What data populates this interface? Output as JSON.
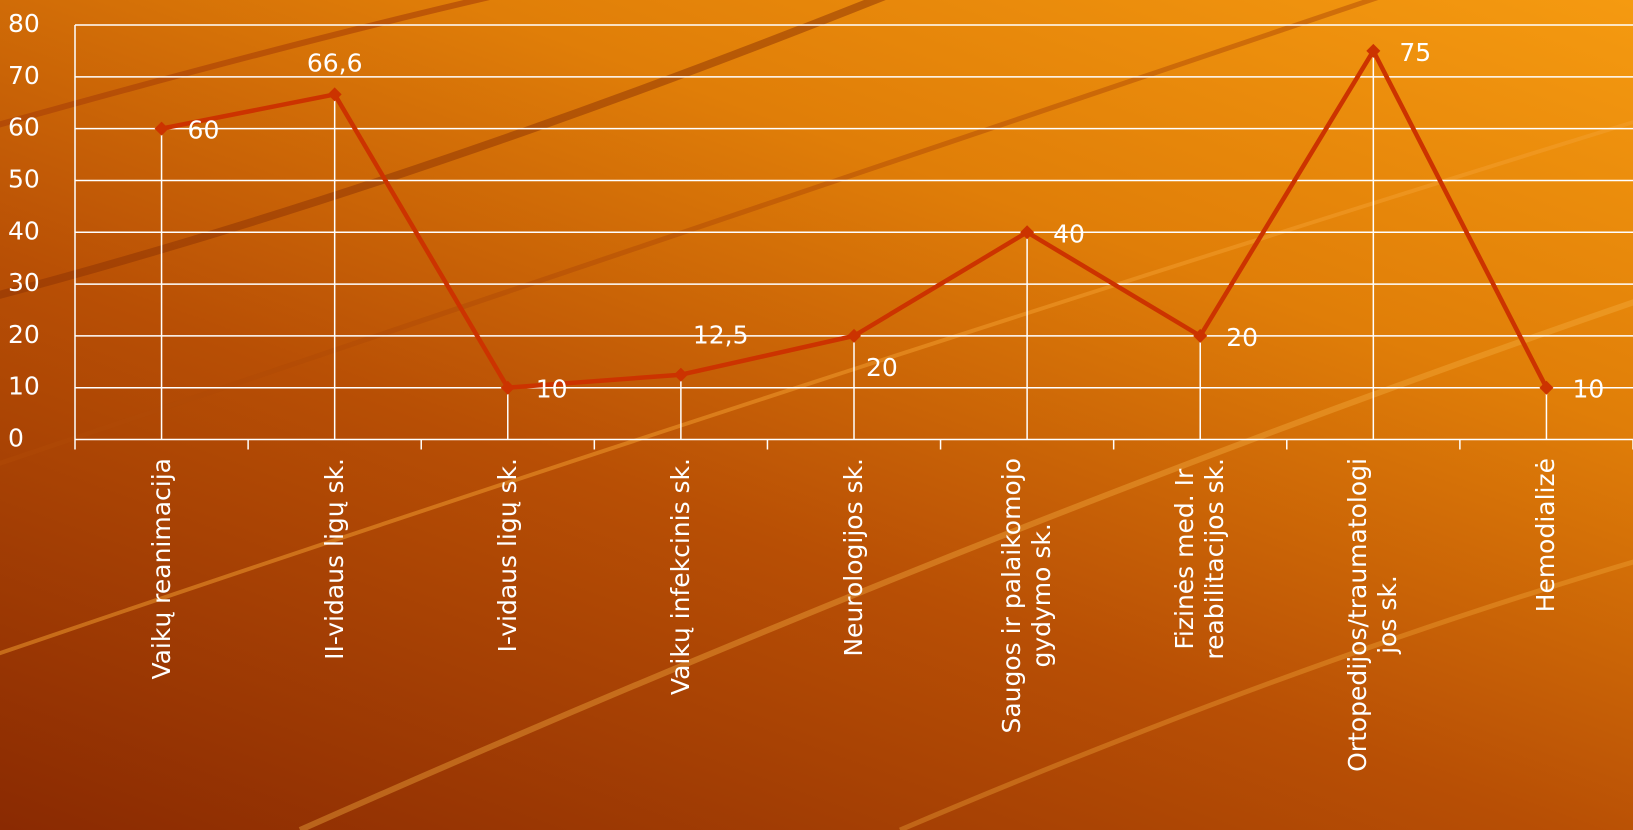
{
  "chart_data": {
    "type": "line",
    "categories": [
      "Vaikų reanimacija",
      "II-vidaus ligų sk.",
      "I-vidaus ligų sk.",
      "Vaikų infekcinis sk.",
      "Neurologijos sk.",
      "Saugos ir palaikomojo\ngydymo sk.",
      "Fizinės med. Ir\nreabilitacijos sk.",
      "Ortopedijos/traumatologi\njos sk.",
      "Hemodializė"
    ],
    "values": [
      60,
      66.6,
      10,
      12.5,
      20,
      40,
      20,
      75,
      10
    ],
    "value_labels": [
      "60",
      "66,6",
      "10",
      "12,5",
      "20",
      "40",
      "20",
      "75",
      "10"
    ],
    "color": "#cc3300",
    "ylim": [
      0,
      80
    ],
    "yticks": [
      0,
      10,
      20,
      30,
      40,
      50,
      60,
      70,
      80
    ],
    "grid": true
  }
}
